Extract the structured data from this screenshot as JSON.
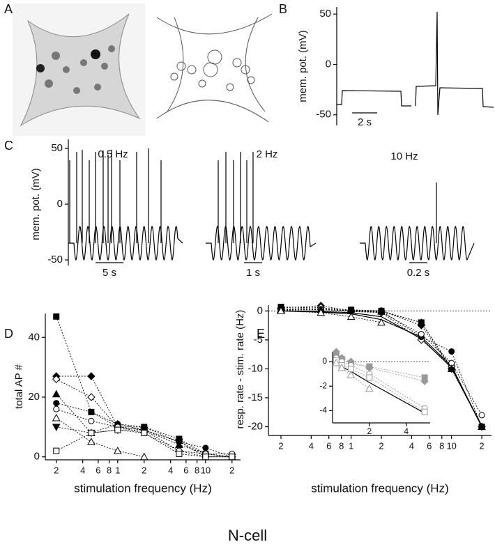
{
  "panel_labels": [
    "A",
    "B",
    "C",
    "D",
    "E"
  ],
  "footer": "N-cell",
  "chart_data": [
    {
      "type": "trace",
      "ylabel": "mem. pot. (mV)",
      "ylim": [
        -55,
        55
      ],
      "yticks": [
        50,
        0,
        -50
      ],
      "scale_bars": [
        "2 s"
      ]
    },
    {
      "type": "trace",
      "ylabel": "mem. pot. (mV)",
      "ylim": [
        -55,
        55
      ],
      "yticks": [
        50,
        0,
        -50
      ],
      "trace_labels": [
        "0.5 Hz",
        "2 Hz",
        "10 Hz"
      ],
      "scale_bars": [
        "5 s",
        "1 s",
        "0.2 s"
      ]
    },
    {
      "type": "scatter",
      "ylabel": "total AP #",
      "xlabel": "stimulation frequency (Hz)",
      "log_x": true,
      "xlim": [
        0.15,
        25
      ],
      "ylim": [
        -1,
        48
      ],
      "yticks": [
        0,
        20,
        40
      ],
      "xticks": [
        {
          "value": 0.2,
          "label": "2"
        },
        {
          "value": 0.4,
          "label": "4"
        },
        {
          "value": 0.6,
          "label": "6"
        },
        {
          "value": 0.8,
          "label": "8"
        },
        1,
        {
          "value": 2,
          "label": "2"
        },
        {
          "value": 4,
          "label": "4"
        },
        {
          "value": 6,
          "label": "6"
        },
        {
          "value": 8,
          "label": "8"
        },
        10,
        {
          "value": 20,
          "label": "2"
        }
      ],
      "x": [
        0.2,
        0.5,
        1,
        2,
        5,
        10,
        20
      ],
      "series": [
        {
          "marker": "square",
          "filled": true,
          "color": "#000000",
          "line": "dotted",
          "values": [
            47,
            15,
            10,
            10,
            6,
            1,
            0
          ]
        },
        {
          "marker": "diamond",
          "filled": true,
          "color": "#000000",
          "line": "dotted",
          "values": [
            27,
            27,
            10,
            9,
            5,
            1,
            0
          ]
        },
        {
          "marker": "diamond",
          "filled": false,
          "color": "#000000",
          "line": "dotted",
          "values": [
            26,
            20,
            10,
            9,
            2,
            0,
            0
          ]
        },
        {
          "marker": "triangle",
          "filled": true,
          "color": "#000000",
          "line": "dotted",
          "values": [
            21,
            8,
            11,
            9,
            4,
            1,
            0
          ]
        },
        {
          "marker": "circle",
          "filled": true,
          "color": "#000000",
          "line": "dotted",
          "values": [
            18,
            15,
            11,
            10,
            5,
            3,
            0
          ]
        },
        {
          "marker": "circle",
          "filled": false,
          "color": "#000000",
          "line": "dotted",
          "values": [
            16,
            12,
            10,
            8,
            2,
            1,
            1
          ]
        },
        {
          "marker": "triangle",
          "filled": false,
          "color": "#000000",
          "line": "dotted",
          "values": [
            13,
            5,
            2,
            0,
            null,
            null,
            null
          ]
        },
        {
          "marker": "triangle-down",
          "filled": true,
          "color": "#000000",
          "line": "dotted",
          "values": [
            10,
            8,
            9,
            9,
            5,
            0,
            0
          ]
        },
        {
          "marker": "square",
          "filled": false,
          "color": "#000000",
          "line": "dotted",
          "values": [
            2,
            8,
            9,
            8,
            1,
            0,
            0
          ]
        }
      ]
    },
    {
      "type": "scatter",
      "ylabel": "resp. rate - stim. rate (Hz)",
      "xlabel": "stimulation frequency (Hz)",
      "log_x": true,
      "xlim": [
        0.15,
        25
      ],
      "ylim": [
        -21.5,
        1
      ],
      "yticks": [
        0,
        -5,
        -10,
        -15,
        -20
      ],
      "hline": 0,
      "xticks": [
        {
          "value": 0.2,
          "label": "2"
        },
        {
          "value": 0.4,
          "label": "4"
        },
        {
          "value": 0.6,
          "label": "6"
        },
        {
          "value": 0.8,
          "label": "8"
        },
        1,
        {
          "value": 2,
          "label": "2"
        },
        {
          "value": 4,
          "label": "4"
        },
        {
          "value": 6,
          "label": "6"
        },
        {
          "value": 8,
          "label": "8"
        },
        10,
        {
          "value": 20,
          "label": "2"
        }
      ],
      "x": [
        0.2,
        0.5,
        1,
        2,
        5,
        10,
        20
      ],
      "series": [
        {
          "marker": "none",
          "color": "#000000",
          "line": "solid",
          "values": [
            0,
            -0.2,
            -0.5,
            -1.5,
            -4.5,
            -9.5,
            -20
          ]
        },
        {
          "marker": "none",
          "color": "#000000",
          "line": "solid",
          "values": [
            0,
            -0.1,
            -0.3,
            -1,
            -4.8,
            -9.8,
            -19.8
          ]
        },
        {
          "marker": "square",
          "filled": true,
          "color": "#000000",
          "line": "dotted",
          "values": [
            0.7,
            0.5,
            0.2,
            0,
            -2,
            -9.8,
            -20
          ]
        },
        {
          "marker": "diamond",
          "filled": true,
          "color": "#000000",
          "line": "dotted",
          "values": [
            0.5,
            0.9,
            0,
            0,
            -2.5,
            -10,
            -20
          ]
        },
        {
          "marker": "diamond",
          "filled": false,
          "color": "#000000",
          "line": "dotted",
          "values": [
            0.3,
            0.6,
            -0.1,
            -0.3,
            -5,
            -9.5,
            -20
          ]
        },
        {
          "marker": "circle",
          "filled": true,
          "color": "#000000",
          "line": "dotted",
          "values": [
            0.2,
            0.3,
            0,
            0,
            -4.5,
            -7,
            -20
          ]
        },
        {
          "marker": "circle",
          "filled": false,
          "color": "#000000",
          "line": "dotted",
          "values": [
            0.1,
            0.2,
            0,
            -0.2,
            -4,
            -9,
            -18
          ]
        },
        {
          "marker": "triangle",
          "filled": true,
          "color": "#000000",
          "line": "dotted",
          "values": [
            0.2,
            0.2,
            0.1,
            -0.1,
            -2,
            -10,
            -20
          ]
        },
        {
          "marker": "triangle",
          "filled": false,
          "color": "#000000",
          "line": "dotted",
          "values": [
            0,
            -0.3,
            -1,
            -2,
            null,
            null,
            null
          ]
        }
      ]
    },
    {
      "type": "scatter",
      "xlim": [
        0,
        5.3
      ],
      "ylim": [
        -5,
        0.8
      ],
      "xticks": [
        2,
        4
      ],
      "yticks": [
        0,
        -2,
        -4
      ],
      "hline": 0,
      "x": [
        0.2,
        0.5,
        1,
        2,
        5
      ],
      "series": [
        {
          "marker": "none",
          "color": "#000000",
          "line": "solid",
          "values": [
            0,
            -0.4,
            -0.8,
            -1.7,
            -4.2
          ]
        },
        {
          "marker": "square",
          "filled": true,
          "color": "#999999",
          "line": "dotted",
          "values": [
            0.5,
            0.2,
            -0.2,
            -0.4,
            -1.3
          ]
        },
        {
          "marker": "diamond",
          "filled": true,
          "color": "#999999",
          "line": "dotted",
          "values": [
            0.8,
            0.3,
            0,
            -0.5,
            -1.6
          ]
        },
        {
          "marker": "circle",
          "filled": false,
          "color": "#999999",
          "line": "dotted",
          "values": [
            0.3,
            0,
            -0.3,
            -1,
            -3.8
          ]
        },
        {
          "marker": "square",
          "filled": false,
          "color": "#999999",
          "line": "dotted",
          "values": [
            0.1,
            -0.3,
            -0.6,
            -1.3,
            -4.1
          ]
        },
        {
          "marker": "triangle",
          "filled": false,
          "color": "#999999",
          "line": "dotted",
          "values": [
            -0.1,
            -0.5,
            -1.1,
            -2.2,
            null
          ]
        }
      ]
    }
  ]
}
